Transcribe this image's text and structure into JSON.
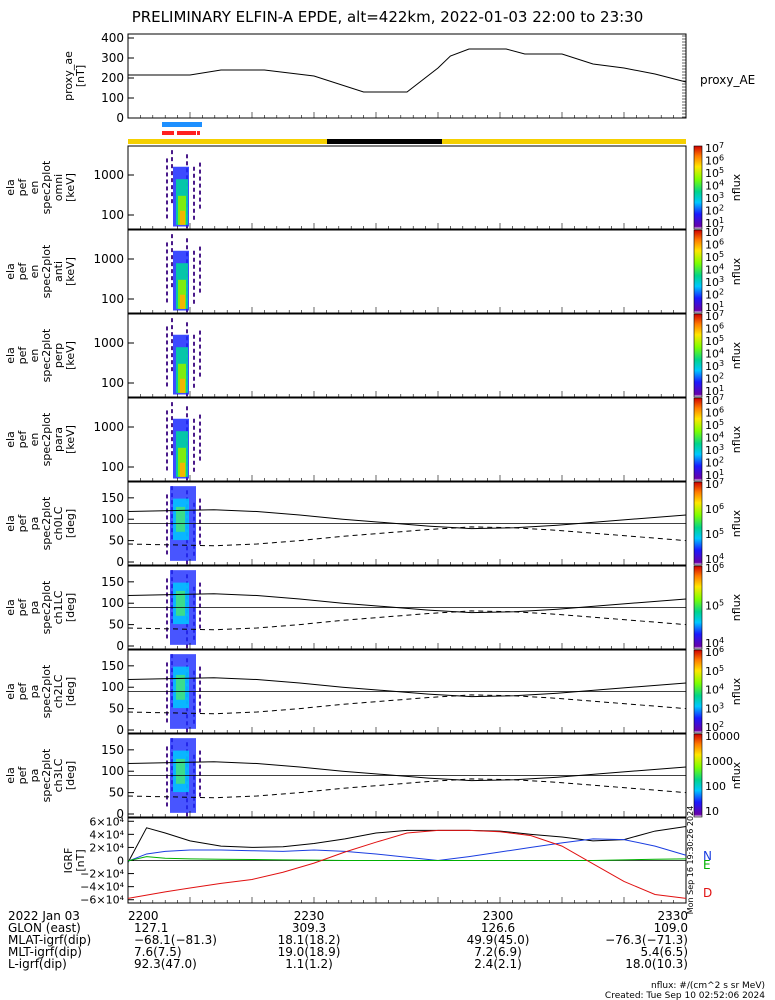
{
  "title": "PRELIMINARY ELFIN-A EPDE, alt=422km, 2022-01-03 22:00 to 23:30",
  "colors": {
    "blue": "#1a3de0",
    "green": "#00b000",
    "red": "#e01010",
    "black": "#000000",
    "yellow": "#f5d000",
    "bar_blue": "#1e90ff",
    "bar_red": "#ff2020"
  },
  "chart_data": [
    {
      "type": "line",
      "panel": "proxy_ae",
      "ylabel": "proxy_ae [nT]",
      "ylabel_lines": [
        "proxy_ae",
        "[nT]"
      ],
      "right_label": "proxy_AE",
      "ylim": [
        0,
        420
      ],
      "yticks": [
        0,
        100,
        200,
        300,
        400
      ],
      "x_minutes": [
        0,
        10,
        15,
        22,
        30,
        38,
        45,
        50,
        52,
        55,
        58,
        61,
        64,
        67,
        70,
        75,
        80,
        85,
        90
      ],
      "values": [
        215,
        215,
        240,
        240,
        210,
        130,
        130,
        250,
        310,
        345,
        345,
        345,
        320,
        320,
        320,
        270,
        250,
        220,
        180
      ]
    },
    {
      "type": "heatmap",
      "panel": "en_omni",
      "ylabel_lines": [
        "ela",
        "pef",
        "en",
        "spec2plot",
        "omni",
        "[keV]"
      ],
      "yticks": [
        "100",
        "1000"
      ],
      "colorbar_label": "nflux",
      "colorbar_ticks": [
        "101",
        "102",
        "103",
        "104",
        "105",
        "106",
        "107"
      ]
    },
    {
      "type": "heatmap",
      "panel": "en_anti",
      "ylabel_lines": [
        "ela",
        "pef",
        "en",
        "spec2plot",
        "anti",
        "[keV]"
      ],
      "yticks": [
        "100",
        "1000"
      ],
      "colorbar_label": "nflux",
      "colorbar_ticks": [
        "101",
        "102",
        "103",
        "104",
        "105",
        "106",
        "107"
      ]
    },
    {
      "type": "heatmap",
      "panel": "en_perp",
      "ylabel_lines": [
        "ela",
        "pef",
        "en",
        "spec2plot",
        "perp",
        "[keV]"
      ],
      "yticks": [
        "100",
        "1000"
      ],
      "colorbar_label": "nflux",
      "colorbar_ticks": [
        "101",
        "102",
        "103",
        "104",
        "105",
        "106",
        "107"
      ]
    },
    {
      "type": "heatmap",
      "panel": "en_para",
      "ylabel_lines": [
        "ela",
        "pef",
        "en",
        "spec2plot",
        "para",
        "[keV]"
      ],
      "yticks": [
        "100",
        "1000"
      ],
      "colorbar_label": "nflux",
      "colorbar_ticks": [
        "101",
        "102",
        "103",
        "104",
        "105",
        "106",
        "107"
      ]
    },
    {
      "type": "heatmap",
      "panel": "pa_ch0",
      "ylabel_lines": [
        "ela",
        "pef",
        "pa",
        "spec2plot",
        "ch0LC",
        "[deg]"
      ],
      "yticks": [
        "0",
        "50",
        "100",
        "150"
      ],
      "ylim": [
        0,
        180
      ],
      "colorbar_label": "nflux",
      "colorbar_ticks": [
        "104",
        "105",
        "106",
        "107"
      ]
    },
    {
      "type": "heatmap",
      "panel": "pa_ch1",
      "ylabel_lines": [
        "ela",
        "pef",
        "pa",
        "spec2plot",
        "ch1LC",
        "[deg]"
      ],
      "yticks": [
        "0",
        "50",
        "100",
        "150"
      ],
      "ylim": [
        0,
        180
      ],
      "colorbar_label": "nflux",
      "colorbar_ticks": [
        "104",
        "105",
        "106"
      ]
    },
    {
      "type": "heatmap",
      "panel": "pa_ch2",
      "ylabel_lines": [
        "ela",
        "pef",
        "pa",
        "spec2plot",
        "ch2LC",
        "[deg]"
      ],
      "yticks": [
        "0",
        "50",
        "100",
        "150"
      ],
      "ylim": [
        0,
        180
      ],
      "colorbar_label": "nflux",
      "colorbar_ticks": [
        "102",
        "103",
        "104",
        "105",
        "106"
      ]
    },
    {
      "type": "heatmap",
      "panel": "pa_ch3",
      "ylabel_lines": [
        "ela",
        "pef",
        "pa",
        "spec2plot",
        "ch3LC",
        "[deg]"
      ],
      "yticks": [
        "0",
        "50",
        "100",
        "150"
      ],
      "ylim": [
        0,
        180
      ],
      "colorbar_label": "nflux",
      "colorbar_ticks": [
        "10",
        "100",
        "1000",
        "10000"
      ]
    },
    {
      "type": "line",
      "panel": "igrf",
      "ylabel_lines": [
        "IGRF",
        "[nT]"
      ],
      "ylim": [
        -65000,
        65000
      ],
      "yticks": [
        "−6×10⁴",
        "−4×10⁴",
        "−2×10⁴",
        "0",
        "2×10⁴",
        "4×10⁴",
        "6×10⁴"
      ],
      "ytick_values": [
        -60000,
        -40000,
        -20000,
        0,
        20000,
        40000,
        60000
      ],
      "side_labels": [
        "N",
        "E",
        "D"
      ],
      "stamp": "Mon Sep 16 19:30:26 2024",
      "x_minutes": [
        0,
        3,
        6,
        10,
        15,
        20,
        25,
        30,
        35,
        40,
        45,
        50,
        55,
        60,
        65,
        70,
        75,
        80,
        85,
        90
      ],
      "series": [
        {
          "key": "black",
          "values": [
            -3000,
            50000,
            42000,
            30000,
            22000,
            20000,
            21000,
            26000,
            33000,
            42000,
            46000,
            46000,
            46000,
            45000,
            40000,
            36000,
            30000,
            32000,
            45000,
            52000
          ]
        },
        {
          "key": "blue",
          "values": [
            -1000,
            10000,
            14000,
            16000,
            16000,
            15000,
            14000,
            16000,
            14000,
            10000,
            5000,
            0,
            6000,
            13000,
            20000,
            27000,
            33000,
            32000,
            22000,
            8000
          ]
        },
        {
          "key": "green",
          "values": [
            -500,
            6000,
            3500,
            2500,
            2000,
            1500,
            1000,
            500,
            0,
            0,
            0,
            0,
            0,
            0,
            0,
            0,
            0,
            1000,
            2000,
            2500
          ]
        },
        {
          "key": "red",
          "values": [
            -58000,
            -53000,
            -48000,
            -42000,
            -35000,
            -29000,
            -18000,
            -4000,
            13000,
            28000,
            42000,
            46000,
            46000,
            44000,
            38000,
            22000,
            -5000,
            -32000,
            -52000,
            -58000
          ]
        }
      ]
    }
  ],
  "x_axis": {
    "date_label": "2022 Jan 03",
    "ticks": [
      "2200",
      "2230",
      "2300",
      "2330"
    ]
  },
  "footer_rows": [
    {
      "label": "GLON (east)",
      "values": [
        "127.1",
        "309.3",
        "126.6",
        "109.0"
      ]
    },
    {
      "label": "MLAT-igrf(dip)",
      "values": [
        "−68.1(−81.3)",
        "18.1(18.2)",
        "49.9(45.0)",
        "−76.3(−71.3)"
      ]
    },
    {
      "label": "MLT-igrf(dip)",
      "values": [
        "7.6(7.5)",
        "19.0(18.9)",
        "7.2(6.9)",
        "5.4(6.5)"
      ]
    },
    {
      "label": "L-igrf(dip)",
      "values": [
        "92.3(47.0)",
        "1.1(1.2)",
        "2.4(2.1)",
        "18.0(10.3)"
      ]
    }
  ],
  "units_note": "nflux: #/(cm^2 s sr MeV)",
  "created_note": "Created: Tue Sep 10 02:52:06 2024"
}
